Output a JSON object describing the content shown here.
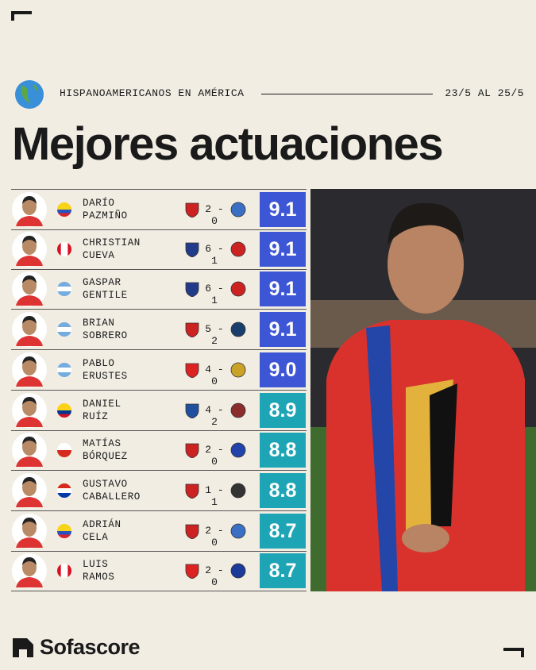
{
  "header": {
    "kicker": "HISPANOAMERICANOS EN AMÉRICA",
    "dates": "23/5 AL 25/5",
    "title": "Mejores actuaciones"
  },
  "rows": [
    {
      "first": "DARÍO",
      "last": "PAZMIÑO",
      "score": "2 - 0",
      "rating": "9.1",
      "color": "#3d56d6"
    },
    {
      "first": "CHRISTIAN",
      "last": "CUEVA",
      "score": "6 - 1",
      "rating": "9.1",
      "color": "#3d56d6"
    },
    {
      "first": "GASPAR",
      "last": "GENTILE",
      "score": "6 - 1",
      "rating": "9.1",
      "color": "#3d56d6"
    },
    {
      "first": "BRIAN",
      "last": "SOBRERO",
      "score": "5 - 2",
      "rating": "9.1",
      "color": "#3d56d6"
    },
    {
      "first": "PABLO",
      "last": "ERUSTES",
      "score": "4 - 0",
      "rating": "9.0",
      "color": "#3d56d6"
    },
    {
      "first": "DANIEL",
      "last": "RUÍZ",
      "score": "4 - 2",
      "rating": "8.9",
      "color": "#1ea5b5"
    },
    {
      "first": "MATÍAS",
      "last": "BÓRQUEZ",
      "score": "2 - 0",
      "rating": "8.8",
      "color": "#1ea5b5"
    },
    {
      "first": "GUSTAVO",
      "last": "CABALLERO",
      "score": "1 - 1",
      "rating": "8.8",
      "color": "#1ea5b5"
    },
    {
      "first": "ADRIÁN",
      "last": "CELA",
      "score": "2 - 0",
      "rating": "8.7",
      "color": "#1ea5b5"
    },
    {
      "first": "LUIS",
      "last": "RAMOS",
      "score": "2 - 0",
      "rating": "8.7",
      "color": "#1ea5b5"
    }
  ],
  "footer": {
    "brand": "Sofascore"
  }
}
